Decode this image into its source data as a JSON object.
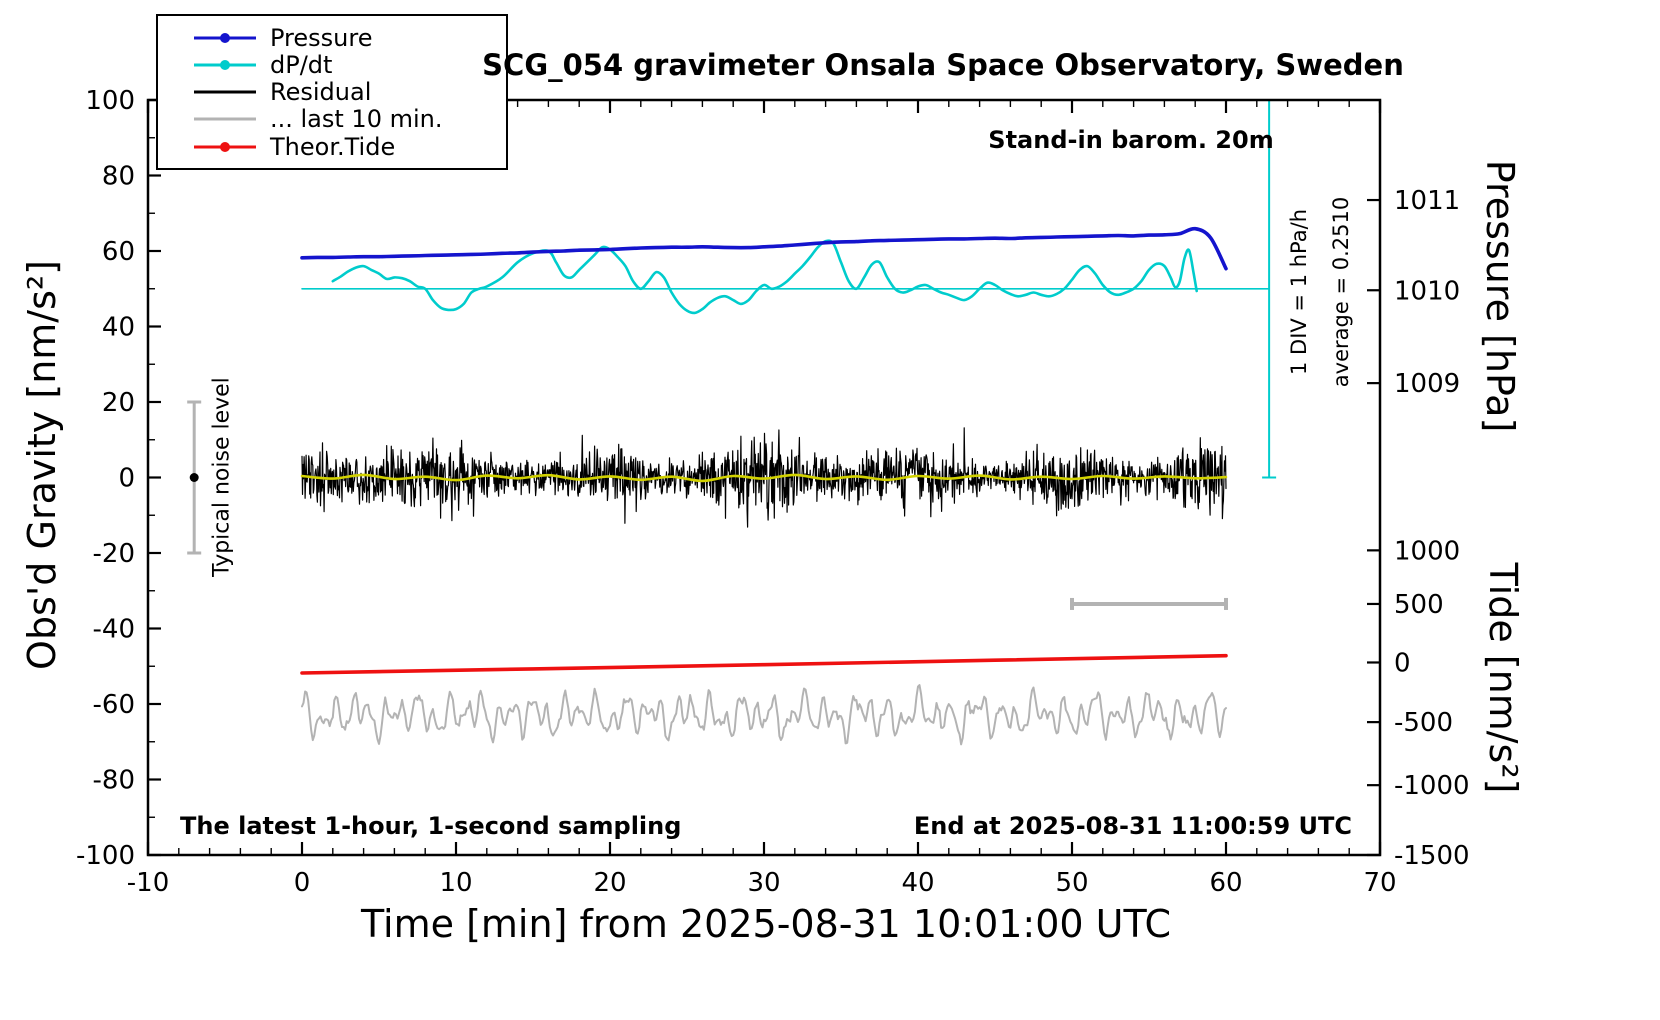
{
  "legend": {
    "items": [
      {
        "label": "Pressure",
        "color": "#1414cd",
        "dot": true
      },
      {
        "label": "dP/dt",
        "color": "#00cccc",
        "dot": true
      },
      {
        "label": "Residual",
        "color": "#000000",
        "dot": false
      },
      {
        "label": "... last 10 min.",
        "color": "#b3b3b3",
        "dot": false
      },
      {
        "label": "Theor.Tide",
        "color": "#ee1111",
        "dot": true
      }
    ]
  },
  "chart_data": {
    "type": "line",
    "title": "SCG_054 gravimeter Onsala Space Observatory, Sweden",
    "xlabel": "Time [min] from 2025-08-31 10:01:00 UTC",
    "ylabel_left": "Obs'd Gravity [nm/s²]",
    "ylabel_right_top": "Pressure [hPa]",
    "ylabel_right_bottom": "Tide [nm/s²]",
    "xlim": [
      -10,
      70
    ],
    "ylim_left": [
      -100,
      100
    ],
    "x_ticks": [
      -10,
      0,
      10,
      20,
      30,
      40,
      50,
      60,
      70
    ],
    "y_ticks_left": [
      -100,
      -80,
      -60,
      -40,
      -20,
      0,
      20,
      40,
      60,
      80,
      100
    ],
    "y_ticks_pressure": [
      {
        "label": "1011",
        "gravity_y": 73.5
      },
      {
        "label": "1010",
        "gravity_y": 49.6
      },
      {
        "label": "1009",
        "gravity_y": 25.0
      }
    ],
    "y_ticks_tide": [
      {
        "label": "1000",
        "gravity_y": -19.3
      },
      {
        "label": "500",
        "gravity_y": -33.5
      },
      {
        "label": "0",
        "gravity_y": -49.0
      },
      {
        "label": "-500",
        "gravity_y": -64.8
      },
      {
        "label": "-1000",
        "gravity_y": -81.5
      },
      {
        "label": "-1500",
        "gravity_y": -100.0
      }
    ],
    "annotations": {
      "standin": "Stand-in barom. 20m",
      "div_scale": "1 DIV = 1 hPa/h",
      "average": "average = 0.2510",
      "noise_level": "Typical noise level",
      "sampling_note": "The latest 1-hour, 1-second sampling",
      "end_note": "End at 2025-08-31 11:00:59 UTC"
    },
    "series": [
      {
        "name": "dpdt_zero_line",
        "color": "#00cccc",
        "width": 1.6,
        "smooth": false,
        "points": [
          [
            0,
            50
          ],
          [
            62.8,
            50
          ]
        ]
      },
      {
        "name": "gray_last10",
        "color": "#b3b3b3",
        "width": 2,
        "generator": {
          "kind": "wave",
          "seed": 7,
          "t0": 0,
          "t1": 60,
          "step": 0.1,
          "mean": -63,
          "components": [
            [
              3.0,
              1.05,
              0.5
            ],
            [
              2.3,
              1.9,
              1.3
            ],
            [
              1.7,
              0.62,
              4.0
            ],
            [
              1.2,
              3.7,
              2.2
            ]
          ],
          "jitter": 1.0
        }
      },
      {
        "name": "residual",
        "color": "#000000",
        "width": 1.2,
        "generator": {
          "kind": "noise",
          "seed": 1234,
          "t0": 0,
          "t1": 60,
          "step": 0.033333,
          "mean": 0,
          "amp": 6,
          "spike_prob": 0.006,
          "spike_amp": 8,
          "clip": 14
        }
      },
      {
        "name": "residual_smooth",
        "color": "#d2d200",
        "width": 2.6,
        "smooth": true,
        "points": [
          [
            0,
            0.4
          ],
          [
            2,
            -0.3
          ],
          [
            4,
            0.7
          ],
          [
            6,
            -0.4
          ],
          [
            8,
            0.2
          ],
          [
            10,
            -0.7
          ],
          [
            12,
            0.5
          ],
          [
            14,
            -0.2
          ],
          [
            16,
            0.6
          ],
          [
            18,
            -0.5
          ],
          [
            20,
            0.3
          ],
          [
            22,
            -0.6
          ],
          [
            24,
            0.2
          ],
          [
            26,
            -0.9
          ],
          [
            28,
            0.4
          ],
          [
            30,
            -0.3
          ],
          [
            32,
            0.7
          ],
          [
            34,
            -0.4
          ],
          [
            36,
            0.3
          ],
          [
            38,
            -0.6
          ],
          [
            40,
            0.4
          ],
          [
            42,
            -0.3
          ],
          [
            44,
            0.5
          ],
          [
            46,
            -0.5
          ],
          [
            48,
            0.2
          ],
          [
            50,
            -0.4
          ],
          [
            52,
            0.4
          ],
          [
            54,
            -0.3
          ],
          [
            56,
            0.3
          ],
          [
            58,
            -0.2
          ],
          [
            60,
            0.1
          ]
        ]
      },
      {
        "name": "dpdt",
        "color": "#00cccc",
        "width": 2.6,
        "smooth": true,
        "points": [
          [
            2,
            52
          ],
          [
            2.5,
            53.2
          ],
          [
            3,
            54.6
          ],
          [
            3.5,
            55.6
          ],
          [
            4,
            56
          ],
          [
            4.5,
            55
          ],
          [
            5,
            54
          ],
          [
            5.5,
            52.6
          ],
          [
            6,
            53
          ],
          [
            6.5,
            52.8
          ],
          [
            7,
            52
          ],
          [
            7.5,
            50.6
          ],
          [
            8,
            50
          ],
          [
            8.5,
            47
          ],
          [
            9,
            45
          ],
          [
            9.5,
            44.4
          ],
          [
            10,
            44.6
          ],
          [
            10.5,
            46
          ],
          [
            11,
            49
          ],
          [
            11.5,
            50
          ],
          [
            12,
            50.6
          ],
          [
            13,
            53
          ],
          [
            14,
            57
          ],
          [
            15,
            59.4
          ],
          [
            16,
            60
          ],
          [
            16.5,
            57
          ],
          [
            17,
            53.6
          ],
          [
            17.5,
            53
          ],
          [
            18,
            55
          ],
          [
            19,
            59
          ],
          [
            19.5,
            61
          ],
          [
            20,
            60.4
          ],
          [
            20.5,
            58.4
          ],
          [
            21,
            56
          ],
          [
            21.5,
            52
          ],
          [
            22,
            50
          ],
          [
            22.5,
            52
          ],
          [
            23,
            54.4
          ],
          [
            23.5,
            53
          ],
          [
            24,
            49
          ],
          [
            24.5,
            46
          ],
          [
            25,
            44.2
          ],
          [
            25.5,
            43.6
          ],
          [
            26,
            44.6
          ],
          [
            26.5,
            46.4
          ],
          [
            27,
            47.6
          ],
          [
            27.5,
            48
          ],
          [
            28,
            47
          ],
          [
            28.5,
            46
          ],
          [
            29,
            47
          ],
          [
            29.5,
            49.4
          ],
          [
            30,
            51
          ],
          [
            30.5,
            50
          ],
          [
            31,
            50.6
          ],
          [
            31.5,
            52
          ],
          [
            32,
            54
          ],
          [
            32.5,
            56
          ],
          [
            33,
            58.4
          ],
          [
            33.5,
            61
          ],
          [
            34,
            62.6
          ],
          [
            34.5,
            62
          ],
          [
            35,
            57
          ],
          [
            35.5,
            52
          ],
          [
            36,
            50
          ],
          [
            36.5,
            53
          ],
          [
            37,
            56.4
          ],
          [
            37.5,
            57
          ],
          [
            38,
            53
          ],
          [
            38.5,
            50
          ],
          [
            39,
            49
          ],
          [
            39.5,
            49.6
          ],
          [
            40,
            50.6
          ],
          [
            40.5,
            51
          ],
          [
            41,
            50
          ],
          [
            41.5,
            49
          ],
          [
            42,
            48.4
          ],
          [
            42.5,
            47.6
          ],
          [
            43,
            47
          ],
          [
            43.5,
            48
          ],
          [
            44,
            50
          ],
          [
            44.5,
            51.6
          ],
          [
            45,
            51
          ],
          [
            45.5,
            49.6
          ],
          [
            46,
            48.6
          ],
          [
            46.5,
            48
          ],
          [
            47,
            48.4
          ],
          [
            47.5,
            49
          ],
          [
            48,
            48.4
          ],
          [
            48.5,
            48
          ],
          [
            49,
            48.6
          ],
          [
            49.5,
            50
          ],
          [
            50,
            52.4
          ],
          [
            50.5,
            55
          ],
          [
            51,
            56
          ],
          [
            51.5,
            54
          ],
          [
            52,
            51
          ],
          [
            52.5,
            49
          ],
          [
            53,
            48.4
          ],
          [
            53.5,
            49
          ],
          [
            54,
            50
          ],
          [
            54.5,
            52
          ],
          [
            55,
            55
          ],
          [
            55.5,
            56.6
          ],
          [
            56,
            56
          ],
          [
            56.4,
            53
          ],
          [
            56.7,
            50.4
          ],
          [
            57,
            52
          ],
          [
            57.3,
            58
          ],
          [
            57.6,
            60.2
          ],
          [
            57.9,
            54
          ],
          [
            58.1,
            49.4
          ]
        ]
      },
      {
        "name": "pressure",
        "color": "#1414cd",
        "width": 3.6,
        "smooth": true,
        "x0": 0,
        "dx": 1,
        "y": [
          58.2,
          58.3,
          58.3,
          58.4,
          58.5,
          58.5,
          58.6,
          58.7,
          58.8,
          58.9,
          59.0,
          59.1,
          59.2,
          59.4,
          59.5,
          59.7,
          59.9,
          60.0,
          60.2,
          60.3,
          60.4,
          60.6,
          60.8,
          60.9,
          61.0,
          61.0,
          61.1,
          61.0,
          60.9,
          60.9,
          61.1,
          61.3,
          61.6,
          61.9,
          62.2,
          62.4,
          62.5,
          62.7,
          62.8,
          62.9,
          63.0,
          63.1,
          63.2,
          63.2,
          63.3,
          63.4,
          63.3,
          63.5,
          63.6,
          63.7,
          63.8,
          63.9,
          64.0,
          64.1,
          64.0,
          64.2,
          64.3,
          64.6,
          65.9,
          63.5,
          55.3
        ]
      },
      {
        "name": "tide",
        "color": "#ee1111",
        "width": 3.6,
        "smooth": false,
        "points": [
          [
            0,
            -51.8
          ],
          [
            15,
            -50.7
          ],
          [
            30,
            -49.6
          ],
          [
            45,
            -48.4
          ],
          [
            60,
            -47.2
          ]
        ]
      }
    ],
    "markers": {
      "noise_bar": {
        "x": -7,
        "g0": -20,
        "g1": 20,
        "cap": 7,
        "color": "#b3b3b3",
        "dot_g": 0
      },
      "scale_bar": {
        "g": -33.5,
        "x0": 50,
        "x1": 60,
        "cap": 6,
        "color": "#b3b3b3"
      },
      "div_indicator": {
        "x": 62.8,
        "g0": 0,
        "g1": 100,
        "cap": 7,
        "color": "#00cccc"
      }
    }
  }
}
